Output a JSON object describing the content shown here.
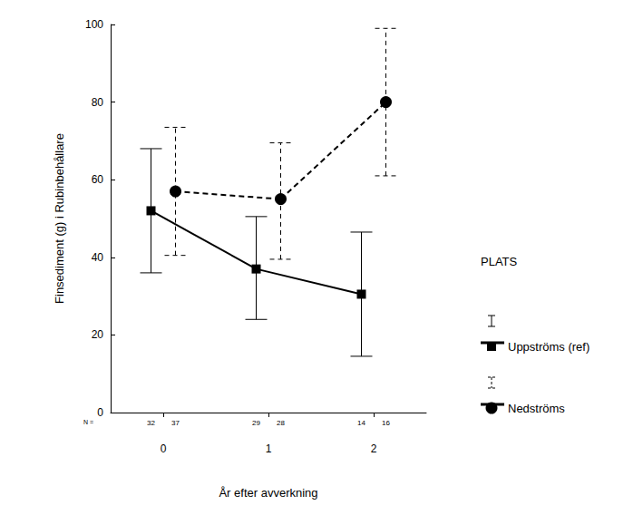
{
  "chart_data": {
    "type": "line",
    "x_label": "År efter avverkning",
    "y_label": "Finsediment (g) i Rubinbehållare",
    "categories": [
      "0",
      "1",
      "2"
    ],
    "ylim": [
      0,
      100
    ],
    "yticks": [
      0,
      20,
      40,
      60,
      80,
      100
    ],
    "grid": false,
    "legend": "right",
    "legend_title": "PLATS",
    "n_label": "N =",
    "series": [
      {
        "name": "Uppströms (ref)",
        "color": "#000000",
        "marker": "square",
        "line_style": "solid",
        "values": [
          52,
          37,
          30.5
        ],
        "error_low": [
          36,
          24,
          14.5
        ],
        "error_high": [
          68,
          50.5,
          46.5
        ],
        "n": [
          32,
          29,
          14
        ]
      },
      {
        "name": "Nedströms",
        "color": "#000000",
        "marker": "circle",
        "line_style": "dashed",
        "values": [
          57,
          55,
          80
        ],
        "error_low": [
          40.5,
          39.5,
          61
        ],
        "error_high": [
          73.5,
          69.5,
          99
        ],
        "n": [
          37,
          28,
          16
        ]
      }
    ]
  }
}
